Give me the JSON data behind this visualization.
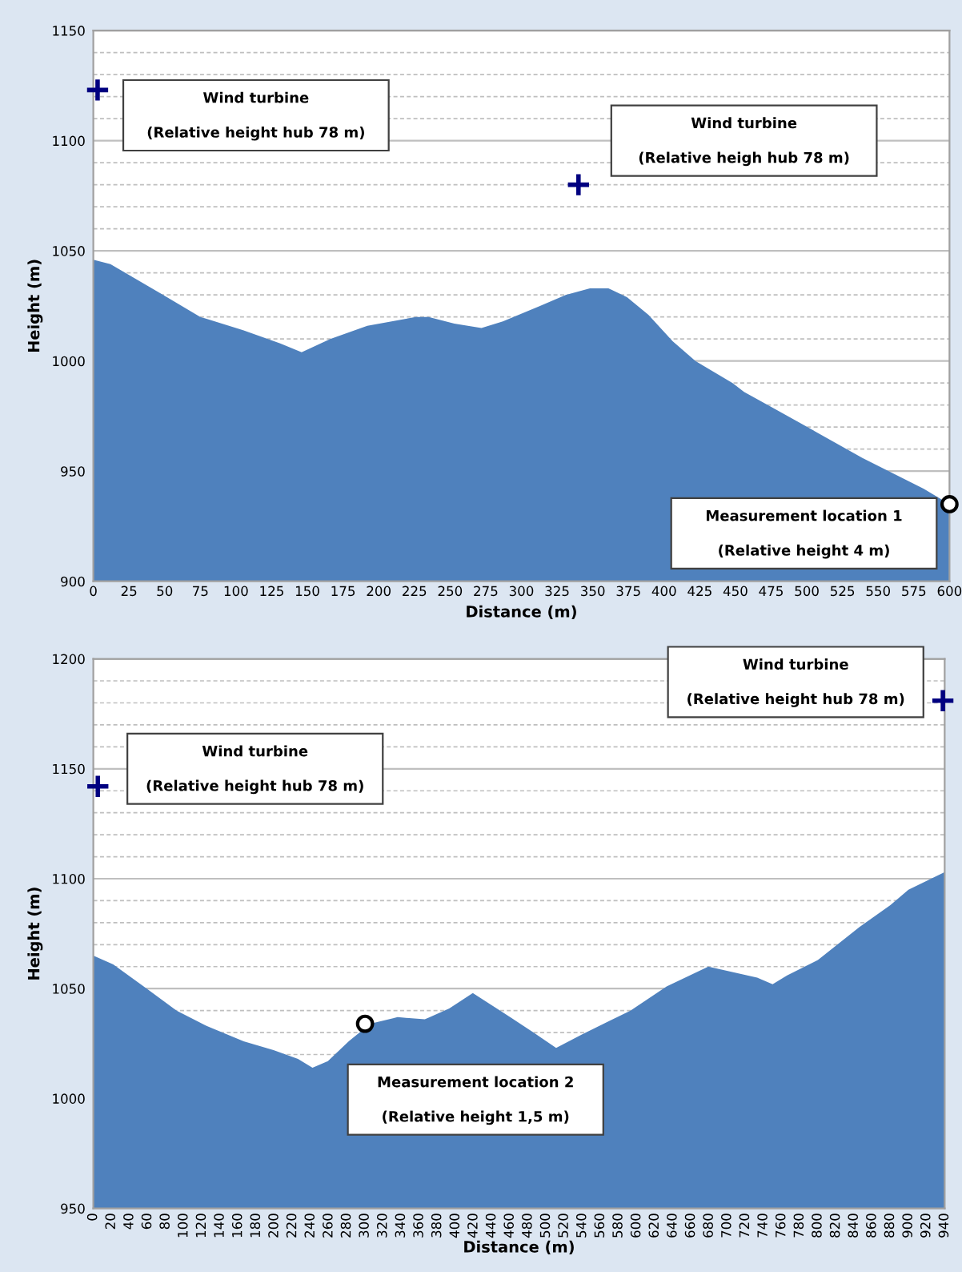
{
  "chart_data": [
    {
      "type": "area",
      "xlabel": "Distance (m)",
      "ylabel": "Height (m)",
      "xlim": [
        0,
        600
      ],
      "ylim": [
        900,
        1150
      ],
      "xticks": [
        0,
        25,
        50,
        75,
        100,
        125,
        150,
        175,
        200,
        225,
        250,
        275,
        300,
        325,
        350,
        375,
        400,
        425,
        450,
        475,
        500,
        525,
        550,
        575,
        600
      ],
      "yticks": [
        900,
        950,
        {
          "value": 960,
          "label": null
        },
        {
          "value": 970,
          "label": null
        },
        {
          "value": 980,
          "label": null
        },
        {
          "value": 990,
          "label": null
        },
        1000,
        {
          "value": 1010,
          "label": null
        },
        {
          "value": 1020,
          "label": null
        },
        {
          "value": 1030,
          "label": null
        },
        {
          "value": 1040,
          "label": null
        },
        1050,
        {
          "value": 1060,
          "label": null
        },
        {
          "value": 1070,
          "label": null
        },
        {
          "value": 1080,
          "label": null
        },
        {
          "value": 1090,
          "label": null
        },
        1100,
        {
          "value": 1110,
          "label": null
        },
        {
          "value": 1120,
          "label": null
        },
        {
          "value": 1130,
          "label": null
        },
        {
          "value": 1140,
          "label": null
        },
        1150
      ],
      "grid": "y",
      "series": [
        {
          "color": "#4f81bd",
          "x": [
            0,
            12,
            49,
            75,
            105,
            131,
            146,
            166,
            192,
            226,
            235,
            253,
            272,
            287,
            313,
            331,
            348,
            361,
            374,
            389,
            406,
            422,
            448,
            456,
            495,
            539,
            582,
            600
          ],
          "values": [
            1046,
            1044,
            1030,
            1020,
            1014,
            1008,
            1004,
            1010,
            1016,
            1020,
            1020,
            1017,
            1015,
            1018,
            1025,
            1030,
            1033,
            1033,
            1029,
            1021,
            1009,
            1000,
            990,
            986,
            972,
            956,
            942,
            935
          ]
        },
        {
          "type": "scatter",
          "color": "#000080",
          "marker": "cross",
          "x": [
            3,
            340
          ],
          "values": [
            1123,
            1080
          ]
        },
        {
          "type": "scatter",
          "color": "#000000",
          "marker": "circle",
          "x": [
            600
          ],
          "values": [
            935
          ]
        }
      ],
      "annotations": [
        "Wind turbine",
        "(Relative height hub 78 m)",
        "Wind turbine",
        "(Relative heigh hub 78 m)",
        "Measurement location 1",
        "(Relative height 4 m)"
      ],
      "legend": false
    },
    {
      "type": "area",
      "xlabel": "Distance (m)",
      "ylabel": "Height (m)",
      "xlim": [
        0,
        940
      ],
      "ylim": [
        950,
        1200
      ],
      "xticks": [
        0,
        20,
        40,
        60,
        80,
        100,
        120,
        140,
        160,
        180,
        200,
        220,
        240,
        260,
        280,
        300,
        320,
        340,
        360,
        380,
        400,
        420,
        440,
        460,
        480,
        500,
        520,
        540,
        560,
        580,
        600,
        620,
        640,
        660,
        680,
        700,
        720,
        740,
        760,
        780,
        800,
        820,
        840,
        860,
        880,
        900,
        920,
        940
      ],
      "yticks": [
        950,
        1000,
        {
          "value": 1020,
          "label": null
        },
        {
          "value": 1030,
          "label": null
        },
        {
          "value": 1040,
          "label": null
        },
        1050,
        {
          "value": 1060,
          "label": null
        },
        {
          "value": 1070,
          "label": null
        },
        {
          "value": 1080,
          "label": null
        },
        {
          "value": 1090,
          "label": null
        },
        1100,
        {
          "value": 1110,
          "label": null
        },
        {
          "value": 1120,
          "label": null
        },
        {
          "value": 1130,
          "label": null
        },
        {
          "value": 1140,
          "label": null
        },
        1150,
        {
          "value": 1160,
          "label": null
        },
        {
          "value": 1170,
          "label": null
        },
        {
          "value": 1180,
          "label": null
        },
        {
          "value": 1190,
          "label": null
        },
        1200
      ],
      "grid": "y",
      "series": [
        {
          "color": "#4f81bd",
          "x": [
            0,
            22,
            59,
            92,
            125,
            166,
            199,
            226,
            242,
            259,
            282,
            306,
            336,
            366,
            393,
            419,
            453,
            486,
            511,
            539,
            593,
            633,
            679,
            733,
            750,
            766,
            800,
            846,
            880,
            900,
            940
          ],
          "values": [
            1065,
            1061,
            1050,
            1040,
            1033,
            1026,
            1022,
            1018,
            1014,
            1017,
            1026,
            1034,
            1037,
            1036,
            1041,
            1048,
            1039,
            1030,
            1023,
            1029,
            1040,
            1051,
            1060,
            1055,
            1052,
            1056,
            1063,
            1078,
            1088,
            1095,
            1103
          ]
        },
        {
          "type": "scatter",
          "color": "#000080",
          "marker": "cross",
          "x": [
            5,
            938
          ],
          "values": [
            1142,
            1181
          ]
        },
        {
          "type": "scatter",
          "color": "#000000",
          "marker": "circle",
          "x": [
            300
          ],
          "values": [
            1034
          ]
        }
      ],
      "annotations": [
        "Wind turbine",
        "(Relative height hub 78 m)",
        "Wind turbine",
        "(Relative height hub 78 m)",
        "Measurement location 2",
        "(Relative height 1,5 m)"
      ],
      "legend": false
    }
  ]
}
